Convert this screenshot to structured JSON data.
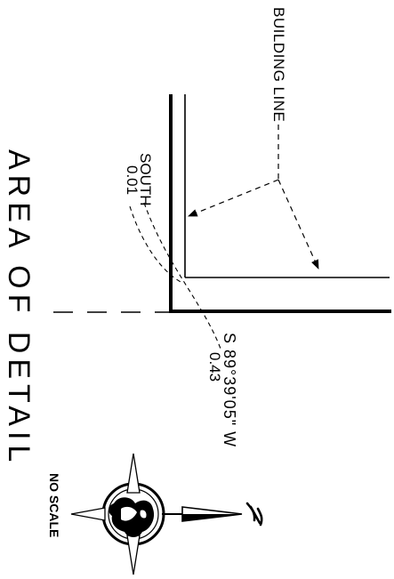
{
  "labels": {
    "building_line": "BUILDING LINE",
    "south_dir": "SOUTH",
    "south_dist": "0.01",
    "bearing": "S 89°39'05\" W",
    "bearing_dist": "0.43",
    "area_title": "AREA OF DETAIL",
    "no_scale": "NO SCALE"
  }
}
